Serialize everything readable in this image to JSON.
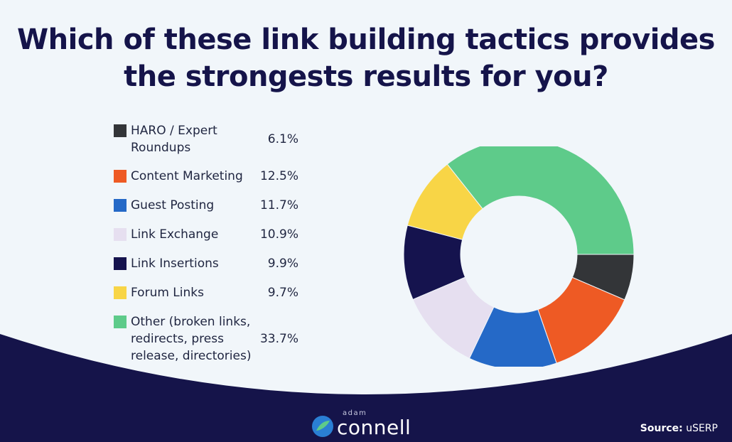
{
  "chart_data": {
    "type": "pie",
    "title": "Which of these link building tactics provides the strongests results for you?",
    "title_lines": [
      "Which of these link building tactics provides",
      "the strongests results for you?"
    ],
    "donut": true,
    "categories": [
      "HARO / Expert Roundups",
      "Content Marketing",
      "Guest Posting",
      "Link Exchange",
      "Link Insertions",
      "Forum Links",
      "Other (broken links, redirects, press release, directories)"
    ],
    "legend_labels": [
      "HARO / Expert\nRoundups",
      "Content Marketing",
      "Guest Posting",
      "Link Exchange",
      "Link Insertions",
      "Forum Links",
      "Other (broken links,\nredirects, press\nrelease, directories)"
    ],
    "values": [
      6.1,
      12.5,
      11.7,
      10.9,
      9.9,
      9.7,
      33.7
    ],
    "value_labels": [
      "6.1%",
      "12.5%",
      "11.7%",
      "10.9%",
      "9.9%",
      "9.7%",
      "33.7%"
    ],
    "colors": [
      "#333538",
      "#ee5a24",
      "#2569c7",
      "#e6dff0",
      "#15134e",
      "#f8d546",
      "#5ecb8a"
    ],
    "legend_placement": "left"
  },
  "source": {
    "label": "Source:",
    "value": "uSERP"
  },
  "logo": {
    "small": "adam",
    "word": "connell"
  }
}
